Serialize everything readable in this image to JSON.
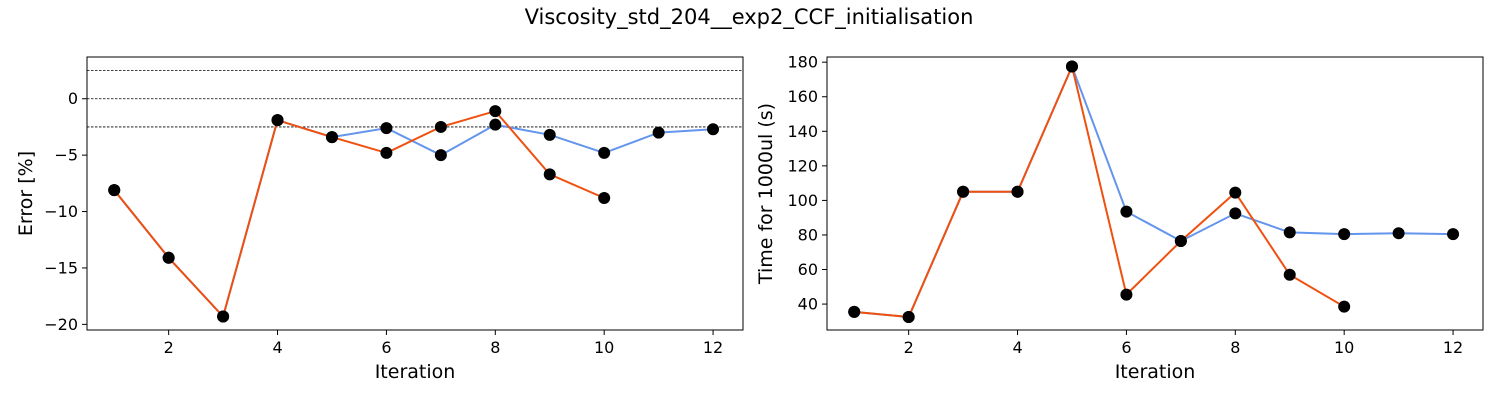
{
  "figure": {
    "title": "Viscosity_std_204__exp2_CCF_initialisation"
  },
  "chart_data": [
    {
      "type": "line",
      "xlabel": "Iteration",
      "ylabel": "Error [%]",
      "xlim": [
        0.5,
        12.55
      ],
      "ylim": [
        -20.5,
        3.7
      ],
      "xticks": [
        2,
        4,
        6,
        8,
        10,
        12
      ],
      "yticks": [
        -20,
        -15,
        -10,
        -5,
        0
      ],
      "reference_lines": [
        2.5,
        0,
        -2.5
      ],
      "series": [
        {
          "color": "#6495ed",
          "x": [
            1,
            2,
            3,
            4,
            5,
            6,
            7,
            8,
            9,
            10,
            11,
            12
          ],
          "y": [
            -8.1,
            -14.1,
            -19.3,
            -1.9,
            -3.4,
            -2.6,
            -5.0,
            -2.3,
            -3.2,
            -4.8,
            -3.0,
            -2.7
          ]
        },
        {
          "color": "#f0500f",
          "x": [
            1,
            2,
            3,
            4,
            5,
            6,
            7,
            8,
            9,
            10
          ],
          "y": [
            -8.1,
            -14.1,
            -19.3,
            -1.9,
            -3.4,
            -4.8,
            -2.5,
            -1.1,
            -6.7,
            -8.8
          ]
        }
      ]
    },
    {
      "type": "line",
      "xlabel": "Iteration",
      "ylabel": "Time for 1000ul (s)",
      "xlim": [
        0.5,
        12.55
      ],
      "ylim": [
        25,
        183
      ],
      "xticks": [
        2,
        4,
        6,
        8,
        10,
        12
      ],
      "yticks": [
        40,
        60,
        80,
        100,
        120,
        140,
        160,
        180
      ],
      "series": [
        {
          "color": "#6495ed",
          "x": [
            1,
            2,
            3,
            4,
            5,
            6,
            7,
            8,
            9,
            10,
            11,
            12
          ],
          "y": [
            35.5,
            32.5,
            105,
            105,
            177.5,
            93.5,
            76.5,
            92.5,
            81.5,
            80.5,
            81,
            80.5
          ]
        },
        {
          "color": "#f0500f",
          "x": [
            1,
            2,
            3,
            4,
            5,
            6,
            7,
            8,
            9,
            10
          ],
          "y": [
            35.5,
            32.5,
            105,
            105,
            177.5,
            45.5,
            76.5,
            104.5,
            57,
            38.5
          ]
        }
      ]
    }
  ]
}
